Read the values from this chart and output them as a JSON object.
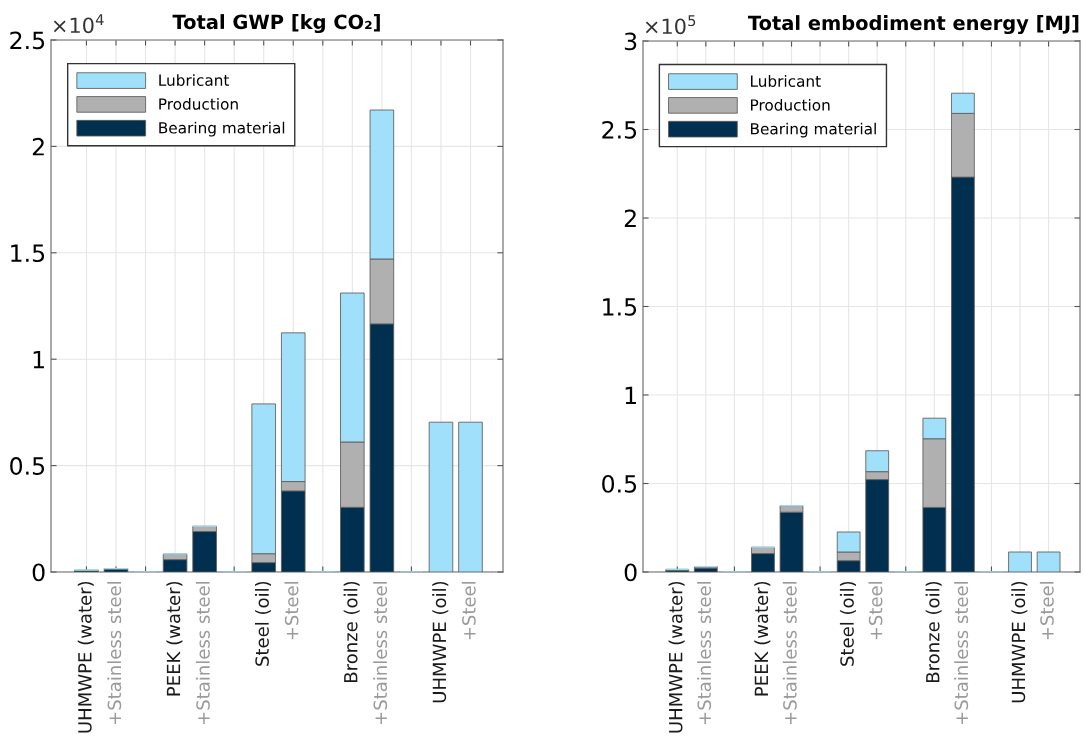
{
  "chart_data": [
    {
      "type": "bar",
      "title": "Total GWP [kg CO₂]",
      "stacked": true,
      "grid": true,
      "legend": "top left",
      "categories": [
        "UHMWPE (water)",
        "+Stainless steel",
        null,
        "PEEK (water)",
        "+Stainless steel",
        null,
        "Steel (oil)",
        "+Steel",
        null,
        "Bronze (oil)",
        "+Stainless steel",
        null,
        "UHMWPE (oil)",
        "+Steel"
      ],
      "series": [
        {
          "name": "Bearing material",
          "color": "#002f4f",
          "values": [
            0.006,
            0.012,
            0,
            0.058,
            0.19,
            0,
            0.044,
            0.381,
            0,
            0.304,
            1.166,
            0,
            0,
            0
          ]
        },
        {
          "name": "Production",
          "color": "#b0b0b0",
          "values": [
            0.003,
            0.004,
            0,
            0.027,
            0.025,
            0,
            0.042,
            0.044,
            0,
            0.307,
            0.305,
            0,
            0,
            0
          ]
        },
        {
          "name": "Lubricant",
          "color": "#a0e0fa",
          "values": [
            0,
            0,
            0,
            0,
            0,
            0,
            0.704,
            0.699,
            0,
            0.7,
            0.7,
            0,
            0.704,
            0.704
          ]
        }
      ],
      "ylim": [
        0,
        2.5
      ],
      "yticks": [
        0,
        0.5,
        1,
        1.5,
        2,
        2.5
      ],
      "annotations": [
        "×10$^{4}$"
      ]
    },
    {
      "type": "bar",
      "title": "Total embodiment energy [MJ]",
      "stacked": true,
      "grid": true,
      "legend": "top left",
      "categories": [
        "UHMWPE (water)",
        "+Stainless steel",
        null,
        "PEEK (water)",
        "+Stainless steel",
        null,
        "Steel (oil)",
        "+Steel",
        null,
        "Bronze (oil)",
        "+Stainless steel",
        null,
        "UHMWPE (oil)",
        "+Steel"
      ],
      "series": [
        {
          "name": "Bearing material",
          "color": "#002f4f",
          "values": [
            0.008,
            0.022,
            0,
            0.104,
            0.338,
            0,
            0.064,
            0.522,
            0,
            0.365,
            2.231,
            0,
            0,
            0
          ]
        },
        {
          "name": "Production",
          "color": "#b0b0b0",
          "values": [
            0.007,
            0.009,
            0,
            0.036,
            0.037,
            0,
            0.049,
            0.045,
            0,
            0.388,
            0.36,
            0,
            0,
            0
          ]
        },
        {
          "name": "Lubricant",
          "color": "#a0e0fa",
          "values": [
            0,
            0,
            0,
            0,
            0,
            0,
            0.113,
            0.118,
            0,
            0.116,
            0.114,
            0,
            0.113,
            0.113
          ]
        }
      ],
      "ylim": [
        0,
        3
      ],
      "yticks": [
        0,
        0.5,
        1,
        1.5,
        2,
        2.5,
        3
      ],
      "annotations": [
        "×10$^{5}$"
      ]
    }
  ]
}
